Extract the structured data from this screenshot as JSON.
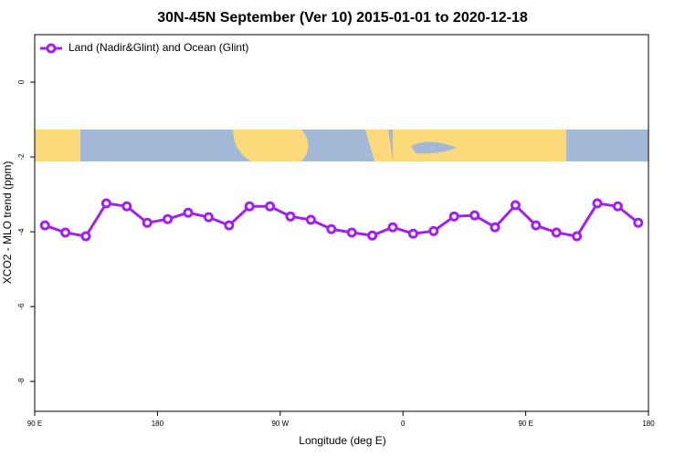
{
  "chart_data": {
    "type": "line",
    "title": "30N-45N September (Ver 10)   2015-01-01 to 2020-12-18",
    "x_label": "Longitude (deg E)",
    "y_label": "XCO2 - MLO trend (ppm)",
    "x": [
      97.5,
      112.5,
      127.5,
      142.5,
      157.5,
      172.5,
      187.5,
      202.5,
      217.5,
      232.5,
      247.5,
      262.5,
      277.5,
      292.5,
      307.5,
      322.5,
      337.5,
      352.5,
      367.5,
      382.5,
      397.5,
      412.5,
      427.5,
      442.5,
      457.5,
      472.5,
      487.5,
      502.5,
      517.5,
      532.5
    ],
    "series": [
      {
        "name": "Land (Nadir&Glint) and Ocean (Glint)",
        "color": "#a020f0",
        "values": [
          -3.83,
          -4.02,
          -4.12,
          -3.24,
          -3.32,
          -3.76,
          -3.66,
          -3.49,
          -3.61,
          -3.83,
          -3.32,
          -3.32,
          -3.59,
          -3.68,
          -3.93,
          -4.02,
          -4.1,
          -3.88,
          -4.05,
          -3.98,
          -3.59,
          -3.56,
          -3.88,
          -3.29,
          -3.83,
          -4.02,
          -4.12,
          -3.24,
          -3.32,
          -3.76
        ]
      }
    ],
    "xlim": [
      90,
      540
    ],
    "xticks": [
      {
        "value": 90,
        "label": "90 E"
      },
      {
        "value": 180,
        "label": "180"
      },
      {
        "value": 270,
        "label": "90 W"
      },
      {
        "value": 360,
        "label": "0"
      },
      {
        "value": 450,
        "label": "90 E"
      },
      {
        "value": 540,
        "label": "180"
      }
    ],
    "ylim": [
      -8.8,
      1.27
    ],
    "yticks": [
      0,
      -2,
      -4,
      -6,
      -8
    ],
    "legend": "top-left"
  }
}
